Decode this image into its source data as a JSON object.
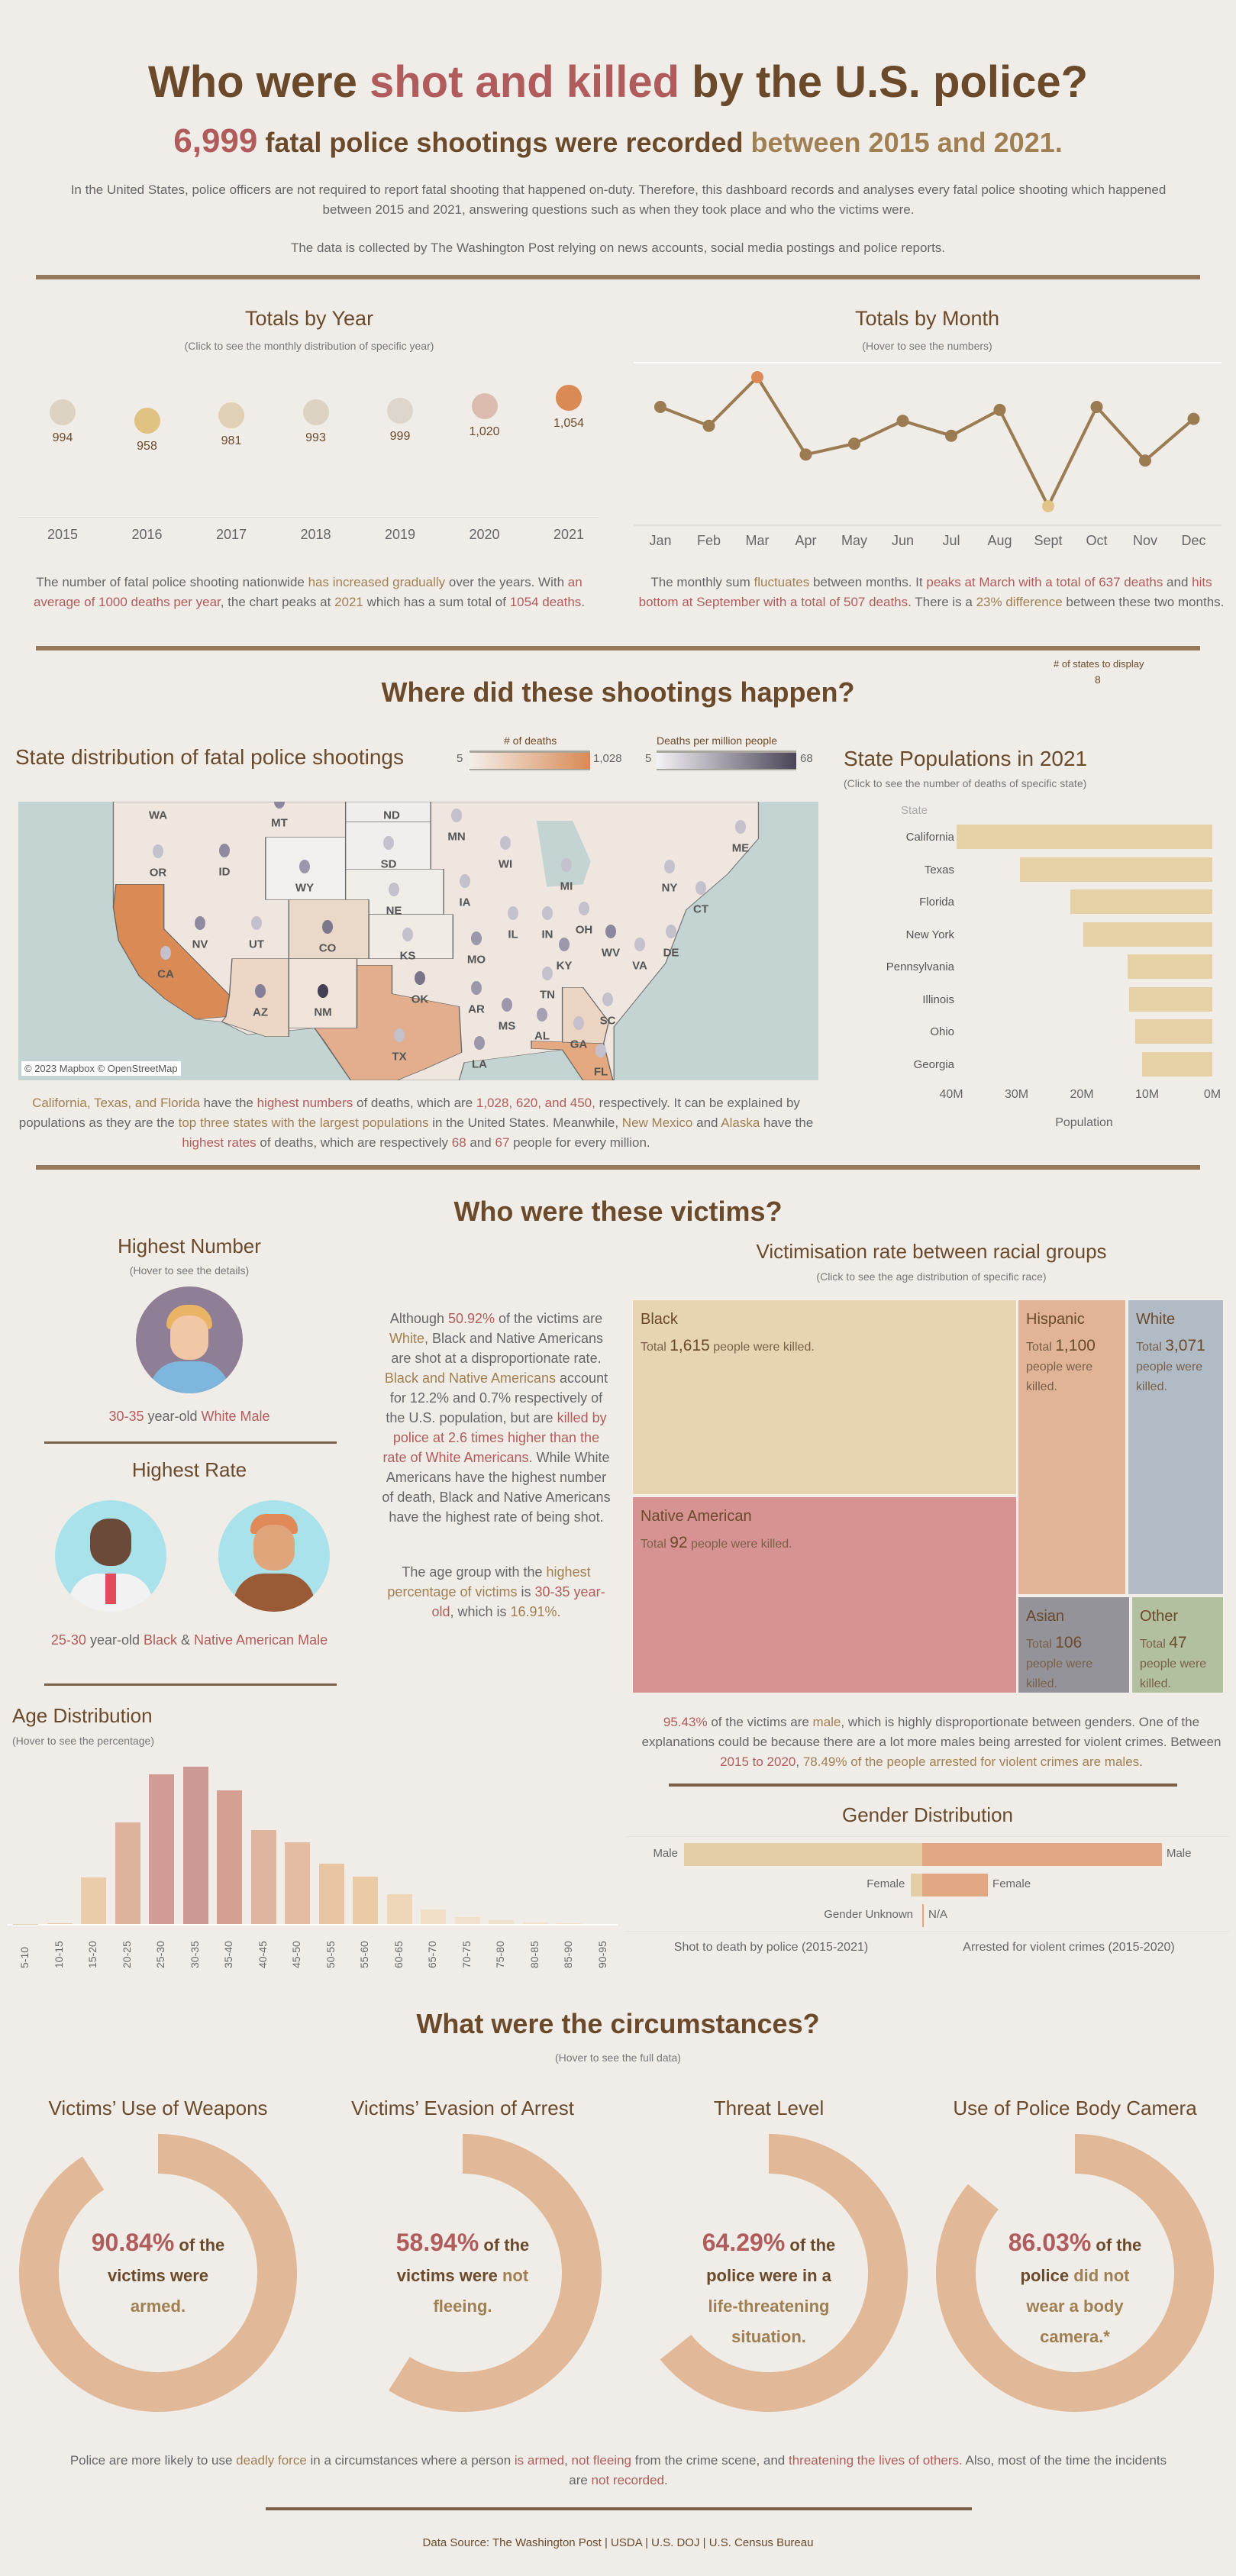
{
  "header": {
    "title_pre": "Who were ",
    "title_hl": "shot and killed",
    "title_post": " by the U.S. police?",
    "sub_num": "6,999",
    "sub_mid": " fatal police shootings were recorded ",
    "sub_hl": "between 2015 and 2021.",
    "intro": [
      {
        "t": "In the United States, police officers are not required to report fatal shooting that happened on-duty. Therefore, this dashboard records and analyses every fatal police shooting which happened between 2015 and 2021, answering questions such as when they took place and who the victims were.",
        "c": ""
      }
    ],
    "source_note": "The data is collected by The Washington Post relying on news accounts, social media postings and police reports."
  },
  "years": {
    "title": "Totals by Year",
    "subtitle": "(Click to see the monthly distribution of specific year)",
    "items": [
      {
        "year": "2015",
        "value": 994,
        "label": "994",
        "color": "#dcd3c3"
      },
      {
        "year": "2016",
        "value": 958,
        "label": "958",
        "color": "#e0c282"
      },
      {
        "year": "2017",
        "value": 981,
        "label": "981",
        "color": "#e0d0b5"
      },
      {
        "year": "2018",
        "value": 993,
        "label": "993",
        "color": "#dcd3c3"
      },
      {
        "year": "2019",
        "value": 999,
        "label": "999",
        "color": "#dcd6cc"
      },
      {
        "year": "2020",
        "value": 1020,
        "label": "1,020",
        "color": "#dcbcae"
      },
      {
        "year": "2021",
        "value": 1054,
        "label": "1,054",
        "color": "#d98a55"
      }
    ],
    "text": [
      {
        "t": "The number of fatal police shooting nationwide ",
        "c": ""
      },
      {
        "t": "has increased gradually",
        "c": "t"
      },
      {
        "t": " over the years. With ",
        "c": ""
      },
      {
        "t": "an average of 1000 deaths per year",
        "c": "r"
      },
      {
        "t": ", the chart peaks at ",
        "c": ""
      },
      {
        "t": "2021",
        "c": "t"
      },
      {
        "t": " which has a sum total of ",
        "c": ""
      },
      {
        "t": "1054 deaths",
        "c": "r"
      },
      {
        "t": ".",
        "c": ""
      }
    ]
  },
  "months": {
    "title": "Totals by Month",
    "subtitle": "(Hover to see the numbers)",
    "chart_data": {
      "type": "line",
      "categories": [
        "Jan",
        "Feb",
        "Mar",
        "Apr",
        "May",
        "Jun",
        "Jul",
        "Aug",
        "Sept",
        "Oct",
        "Nov",
        "Dec"
      ],
      "values": [
        607,
        588,
        637,
        559,
        570,
        593,
        578,
        604,
        507,
        607,
        553,
        595
      ],
      "ylim": [
        500,
        645
      ]
    },
    "text": [
      {
        "t": "The monthly sum ",
        "c": ""
      },
      {
        "t": "fluctuates",
        "c": "t"
      },
      {
        "t": " between months. It ",
        "c": ""
      },
      {
        "t": "peaks at March with a total of 637 deaths",
        "c": "r"
      },
      {
        "t": " and ",
        "c": ""
      },
      {
        "t": "hits bottom at September with a total of 507 deaths",
        "c": "r"
      },
      {
        "t": ". There is a ",
        "c": ""
      },
      {
        "t": "23% difference",
        "c": "t"
      },
      {
        "t": " between these two months.",
        "c": ""
      }
    ]
  },
  "where": {
    "title": "Where did these shootings happen?",
    "states_display_label": "# of states to display",
    "states_display_value": "8",
    "map_title": "State distribution of fatal police shootings",
    "legend_deaths": "# of deaths",
    "legend_deaths_min": "5",
    "legend_deaths_max": "1,028",
    "legend_rate": "Deaths per million people",
    "legend_rate_min": "5",
    "legend_rate_max": "68",
    "attribution": "© 2023 Mapbox © OpenStreetMap",
    "state_labels": [
      "WA",
      "MT",
      "ND",
      "OR",
      "ID",
      "WY",
      "SD",
      "MN",
      "WI",
      "MI",
      "NY",
      "ME",
      "IA",
      "NE",
      "CT",
      "NV",
      "UT",
      "CO",
      "KS",
      "MO",
      "IL",
      "IN",
      "OH",
      "WV",
      "KY",
      "VA",
      "DE",
      "CA",
      "AZ",
      "NM",
      "OK",
      "AR",
      "TN",
      "MS",
      "AL",
      "GA",
      "SC",
      "TX",
      "LA",
      "FL"
    ],
    "map_text": [
      {
        "t": "California, Texas, and Florida",
        "c": "t"
      },
      {
        "t": " have the ",
        "c": ""
      },
      {
        "t": "highest numbers",
        "c": "r"
      },
      {
        "t": " of deaths, which are ",
        "c": ""
      },
      {
        "t": "1,028, 620, and 450,",
        "c": "r"
      },
      {
        "t": " respectively. It can be explained by populations as they are the ",
        "c": ""
      },
      {
        "t": "top three states with the largest populations",
        "c": "t"
      },
      {
        "t": " in the United States. Meanwhile, ",
        "c": ""
      },
      {
        "t": "New Mexico",
        "c": "t"
      },
      {
        "t": " and ",
        "c": ""
      },
      {
        "t": "Alaska",
        "c": "t"
      },
      {
        "t": " have the ",
        "c": ""
      },
      {
        "t": "highest rates",
        "c": "r"
      },
      {
        "t": " of deaths, which are respectively ",
        "c": ""
      },
      {
        "t": "68",
        "c": "r"
      },
      {
        "t": " and ",
        "c": ""
      },
      {
        "t": "67",
        "c": "r"
      },
      {
        "t": " people for every million.",
        "c": ""
      }
    ],
    "pop": {
      "title": "State Populations in 2021",
      "subtitle": "(Click to see the number of deaths of specific state)",
      "col_header": "State",
      "xlabel": "Population",
      "ticks": [
        "40M",
        "30M",
        "20M",
        "10M",
        "0M"
      ],
      "chart_data": {
        "type": "bar",
        "categories": [
          "California",
          "Texas",
          "Florida",
          "New York",
          "Pennsylvania",
          "Illinois",
          "Ohio",
          "Georgia"
        ],
        "values": [
          39.2,
          29.5,
          21.8,
          19.8,
          13.0,
          12.7,
          11.8,
          10.8
        ],
        "unit": "M",
        "xlim": [
          40,
          0
        ]
      }
    }
  },
  "victims": {
    "title": "Who were these victims?",
    "highest_number": "Highest Number",
    "hover_details": "(Hover to see the details)",
    "hn_age": "30-35",
    "hn_mid": " year-old ",
    "hn_who": "White Male",
    "highest_rate": "Highest Rate",
    "hr_age": "25-30",
    "hr_mid": " year-old ",
    "hr_who1": "Black",
    "hr_amp": " & ",
    "hr_who2": "Native American Male",
    "para1": [
      {
        "t": "Although ",
        "c": ""
      },
      {
        "t": "50.92%",
        "c": "r"
      },
      {
        "t": " of the victims are ",
        "c": ""
      },
      {
        "t": "White",
        "c": "t"
      },
      {
        "t": ", Black and Native Americans are shot at a disproportionate rate. ",
        "c": ""
      },
      {
        "t": "Black and Native Americans",
        "c": "t"
      },
      {
        "t": " account for 12.2% and 0.7% respectively of the U.S. population, but are ",
        "c": ""
      },
      {
        "t": "killed by police at 2.6 times higher than the rate of White Americans.",
        "c": "r"
      },
      {
        "t": " While White Americans have the highest number of death, Black and Native Americans have the highest rate of being shot.",
        "c": ""
      }
    ],
    "para2": [
      {
        "t": "The age group with the ",
        "c": ""
      },
      {
        "t": "highest percentage of victims",
        "c": "t"
      },
      {
        "t": " is ",
        "c": ""
      },
      {
        "t": "30-35 year-old",
        "c": "r"
      },
      {
        "t": ", which is ",
        "c": ""
      },
      {
        "t": "16.91%.",
        "c": "t"
      }
    ],
    "race": {
      "title": "Victimisation rate between racial groups",
      "subtitle": "(Click to see the age distribution of specific race)",
      "total": "Total ",
      "killed": " people were killed.",
      "groups": [
        {
          "name": "Black",
          "value": "1,615"
        },
        {
          "name": "Native American",
          "value": "92"
        },
        {
          "name": "Hispanic",
          "value": "1,100"
        },
        {
          "name": "White",
          "value": "3,071"
        },
        {
          "name": "Asian",
          "value": "106"
        },
        {
          "name": "Other",
          "value": "47"
        }
      ],
      "colors": {
        "Black": "#e7d4b3",
        "Native American": "#d79292",
        "Hispanic": "#e1b497",
        "White": "#b0bbc5",
        "Asian": "#939399",
        "Other": "#b3c0a0"
      }
    },
    "age": {
      "title": "Age Distribution",
      "subtitle": "(Hover to see the percentage)",
      "chart_data": {
        "type": "bar",
        "categories": [
          "5-10",
          "10-15",
          "15-20",
          "20-25",
          "25-30",
          "30-35",
          "35-40",
          "40-45",
          "45-50",
          "50-55",
          "55-60",
          "60-65",
          "65-70",
          "70-75",
          "75-80",
          "80-85",
          "85-90",
          "90-95"
        ],
        "values": [
          0.02,
          0.05,
          5.0,
          10.9,
          16.1,
          16.91,
          14.4,
          10.1,
          8.8,
          6.5,
          5.1,
          3.2,
          1.6,
          0.7,
          0.4,
          0.2,
          0.05,
          0
        ],
        "unit": "%",
        "ylim": [
          0,
          17.5
        ]
      }
    },
    "gender_text": [
      {
        "t": "95.43%",
        "c": "r"
      },
      {
        "t": " of the victims are ",
        "c": ""
      },
      {
        "t": "male",
        "c": "t"
      },
      {
        "t": ", which is highly disproportionate between genders. One of the explanations could be because there are a lot more males being arrested for violent crimes. Between ",
        "c": ""
      },
      {
        "t": "2015 to 2020",
        "c": "r"
      },
      {
        "t": ", ",
        "c": ""
      },
      {
        "t": "78.49% of the people arrested for violent crimes are males",
        "c": "t"
      },
      {
        "t": ".",
        "c": ""
      }
    ],
    "gender": {
      "title": "Gender Distribution",
      "left_label": "Shot to death by police (2015-2021)",
      "right_label": "Arrested for violent crimes (2015-2020)",
      "chart_data": {
        "type": "bar",
        "categories": [
          "Male",
          "Female",
          "Gender Unknown"
        ],
        "series": [
          {
            "name": "Shot to death by police (2015-2021)",
            "values": [
              95.43,
              4.5,
              0.07
            ]
          },
          {
            "name": "Arrested for violent crimes (2015-2020)",
            "values": [
              78.49,
              21.51,
              0
            ]
          }
        ],
        "right_labels": [
          "Male",
          "Female",
          "N/A"
        ]
      }
    }
  },
  "circ": {
    "title": "What were the circumstances?",
    "subtitle": "(Hover to see the full data)",
    "items": [
      {
        "title": "Victims’ Use of Weapons",
        "pct": 90.84,
        "pct_label": "90.84%",
        "l1": " of the",
        "l2a": "victims were",
        "l2b": "",
        "l3": "armed.",
        "l4": ""
      },
      {
        "title": "Victims’ Evasion of Arrest",
        "pct": 58.94,
        "pct_label": "58.94%",
        "l1": " of the",
        "l2a": "victims were ",
        "l2b": "not",
        "l3": "fleeing.",
        "l4": ""
      },
      {
        "title": "Threat Level",
        "pct": 64.29,
        "pct_label": "64.29%",
        "l1": " of the",
        "l2a": "police were in a",
        "l2b": "",
        "l3": "life-threatening",
        "l4": "situation."
      },
      {
        "title": "Use of Police Body Camera",
        "pct": 86.03,
        "pct_label": "86.03%",
        "l1": " of the",
        "l2a": "police ",
        "l2b": "did not",
        "l3": "wear a body",
        "l4": "camera.*"
      }
    ],
    "text": [
      {
        "t": "Police are more likely to use ",
        "c": ""
      },
      {
        "t": "deadly force",
        "c": "t"
      },
      {
        "t": " in a circumstances where a person ",
        "c": ""
      },
      {
        "t": "is armed",
        "c": "r"
      },
      {
        "t": ", ",
        "c": ""
      },
      {
        "t": "not fleeing",
        "c": "r"
      },
      {
        "t": " from the crime scene, and ",
        "c": ""
      },
      {
        "t": "threatening the lives of others.",
        "c": "r"
      },
      {
        "t": " Also, most of the time the incidents are ",
        "c": ""
      },
      {
        "t": "not recorded",
        "c": "r"
      },
      {
        "t": ".",
        "c": ""
      }
    ]
  },
  "footer": {
    "source": "Data Source: The Washington Post | USDA | U.S. DOJ | U.S. Census Bureau"
  }
}
